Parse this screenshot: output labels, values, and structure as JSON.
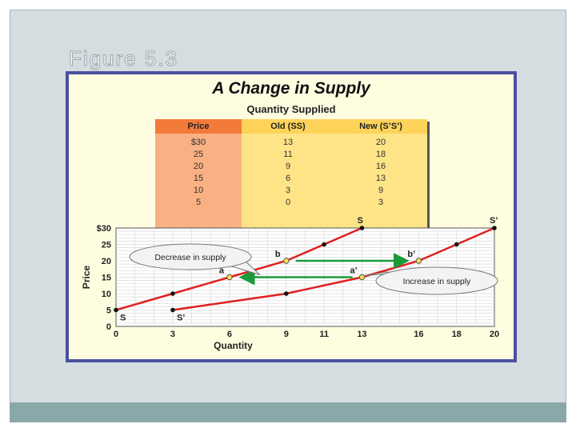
{
  "slide": {
    "title": "Figure 5.3"
  },
  "figure": {
    "heading": "A Change in Supply",
    "table_title": "Quantity Supplied",
    "table": {
      "headers": [
        "Price",
        "Old (SS)",
        "New (S’S’)"
      ],
      "rows": [
        [
          "$30",
          "13",
          "20"
        ],
        [
          "25",
          "11",
          "18"
        ],
        [
          "20",
          "9",
          "16"
        ],
        [
          "15",
          "6",
          "13"
        ],
        [
          "10",
          "3",
          "9"
        ],
        [
          "5",
          "0",
          "3"
        ]
      ]
    }
  },
  "chart_data": {
    "type": "line",
    "xlabel": "Quantity",
    "ylabel": "Price",
    "xlim": [
      0,
      20
    ],
    "ylim": [
      0,
      30
    ],
    "x_ticks": [
      "0",
      "3",
      "6",
      "9",
      "11",
      "13",
      "16",
      "18",
      "20"
    ],
    "y_ticks": [
      "0",
      "5",
      "10",
      "15",
      "20",
      "25",
      "$30"
    ],
    "grid": true,
    "series": [
      {
        "name": "S",
        "end_label": "S",
        "start_label": "S",
        "color": "#e02020",
        "points": [
          [
            0,
            5
          ],
          [
            3,
            10
          ],
          [
            6,
            15
          ],
          [
            9,
            20
          ],
          [
            11,
            25
          ],
          [
            13,
            30
          ]
        ]
      },
      {
        "name": "S’",
        "end_label": "S’",
        "start_label": "S’",
        "color": "#e02020",
        "points": [
          [
            3,
            5
          ],
          [
            9,
            10
          ],
          [
            13,
            15
          ],
          [
            16,
            20
          ],
          [
            18,
            25
          ],
          [
            20,
            30
          ]
        ]
      }
    ],
    "highlight_points": [
      {
        "label": "a",
        "x": 6,
        "y": 15
      },
      {
        "label": "b",
        "x": 9,
        "y": 20
      },
      {
        "label": "a’",
        "x": 13,
        "y": 15
      },
      {
        "label": "b’",
        "x": 16,
        "y": 20
      }
    ],
    "arrows": [
      {
        "from": [
          9.5,
          20
        ],
        "to": [
          15.3,
          20
        ],
        "color": "#1a9a3a"
      },
      {
        "from": [
          12.5,
          15
        ],
        "to": [
          6.7,
          15
        ],
        "color": "#1a9a3a"
      }
    ],
    "annotations": [
      {
        "text": "Decrease in supply",
        "points_to": "a"
      },
      {
        "text": "Increase in supply",
        "points_to": "a’"
      }
    ]
  }
}
